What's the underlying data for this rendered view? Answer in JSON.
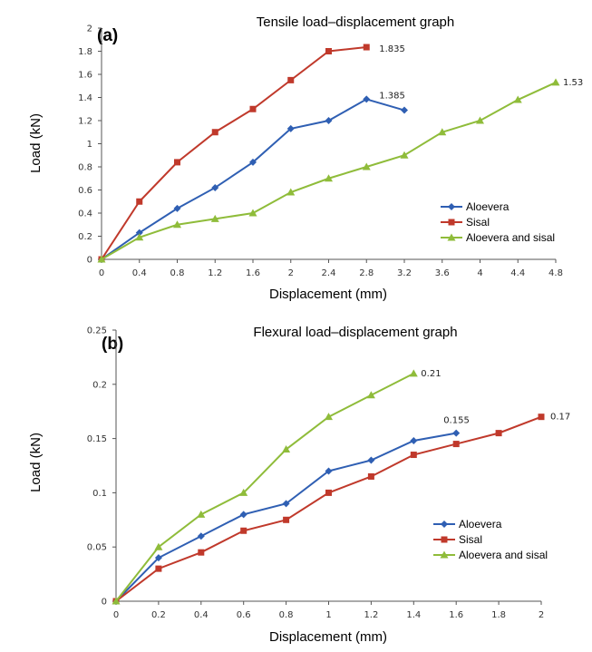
{
  "chart_data": [
    {
      "type": "line",
      "panel_label": "(a)",
      "title": "Tensile load–displacement graph",
      "xlabel": "Displacement (mm)",
      "ylabel": "Load (kN)",
      "xlim": [
        0,
        4.8
      ],
      "ylim": [
        0,
        2
      ],
      "x_ticks": [
        "0",
        "0.4",
        "0.8",
        "1.2",
        "1.6",
        "2",
        "2.4",
        "2.8",
        "3.2",
        "3.6",
        "4",
        "4.4",
        "4.8"
      ],
      "y_ticks": [
        "0",
        "0.2",
        "0.4",
        "0.6",
        "0.8",
        "1",
        "1.2",
        "1.4",
        "1.6",
        "1.8",
        "2"
      ],
      "grid": false,
      "legend_position": "bottom-right",
      "series": [
        {
          "name": "Aloevera",
          "color": "#2f5fb3",
          "marker": "diamond",
          "x": [
            0,
            0.4,
            0.8,
            1.2,
            1.6,
            2.0,
            2.4,
            2.8,
            3.2
          ],
          "y": [
            0,
            0.23,
            0.44,
            0.62,
            0.84,
            1.13,
            1.2,
            1.385,
            1.29
          ]
        },
        {
          "name": "Sisal",
          "color": "#c0392b",
          "marker": "square",
          "x": [
            0,
            0.4,
            0.8,
            1.2,
            1.6,
            2.0,
            2.4,
            2.8
          ],
          "y": [
            0,
            0.5,
            0.84,
            1.1,
            1.3,
            1.55,
            1.8,
            1.835
          ]
        },
        {
          "name": "Aloevera and sisal",
          "color": "#8fbc3a",
          "marker": "triangle",
          "x": [
            0,
            0.4,
            0.8,
            1.2,
            1.6,
            2.0,
            2.4,
            2.8,
            3.2,
            3.6,
            4.0,
            4.4,
            4.8
          ],
          "y": [
            0,
            0.19,
            0.3,
            0.35,
            0.4,
            0.58,
            0.7,
            0.8,
            0.9,
            1.1,
            1.2,
            1.38,
            1.53
          ]
        }
      ],
      "annotations": [
        {
          "text": "1.835",
          "x": 2.8,
          "y": 1.835
        },
        {
          "text": "1.385",
          "x": 2.8,
          "y": 1.385
        },
        {
          "text": "1.53",
          "x": 4.8,
          "y": 1.53
        }
      ]
    },
    {
      "type": "line",
      "panel_label": "(b)",
      "title": "Flexural load–displacement graph",
      "xlabel": "Displacement (mm)",
      "ylabel": "Load (kN)",
      "xlim": [
        0,
        2
      ],
      "ylim": [
        0,
        0.25
      ],
      "x_ticks": [
        "0",
        "0.2",
        "0.4",
        "0.6",
        "0.8",
        "1",
        "1.2",
        "1.4",
        "1.6",
        "1.8",
        "2"
      ],
      "y_ticks": [
        "0",
        "0.05",
        "0.1",
        "0.15",
        "0.2",
        "0.25"
      ],
      "grid": false,
      "legend_position": "bottom-right",
      "series": [
        {
          "name": "Aloevera",
          "color": "#2f5fb3",
          "marker": "diamond",
          "x": [
            0,
            0.2,
            0.4,
            0.6,
            0.8,
            1.0,
            1.2,
            1.4,
            1.6
          ],
          "y": [
            0,
            0.04,
            0.06,
            0.08,
            0.09,
            0.12,
            0.13,
            0.148,
            0.155
          ]
        },
        {
          "name": "Sisal",
          "color": "#c0392b",
          "marker": "square",
          "x": [
            0,
            0.2,
            0.4,
            0.6,
            0.8,
            1.0,
            1.2,
            1.4,
            1.6,
            1.8,
            2.0
          ],
          "y": [
            0,
            0.03,
            0.045,
            0.065,
            0.075,
            0.1,
            0.115,
            0.135,
            0.145,
            0.155,
            0.17
          ]
        },
        {
          "name": "Aloevera and sisal",
          "color": "#8fbc3a",
          "marker": "triangle",
          "x": [
            0,
            0.2,
            0.4,
            0.6,
            0.8,
            1.0,
            1.2,
            1.4
          ],
          "y": [
            0,
            0.05,
            0.08,
            0.1,
            0.14,
            0.17,
            0.19,
            0.21
          ]
        }
      ],
      "annotations": [
        {
          "text": "0.21",
          "x": 1.4,
          "y": 0.21
        },
        {
          "text": "0.155",
          "x": 1.6,
          "y": 0.155
        },
        {
          "text": "0.17",
          "x": 2.0,
          "y": 0.17
        }
      ]
    }
  ]
}
